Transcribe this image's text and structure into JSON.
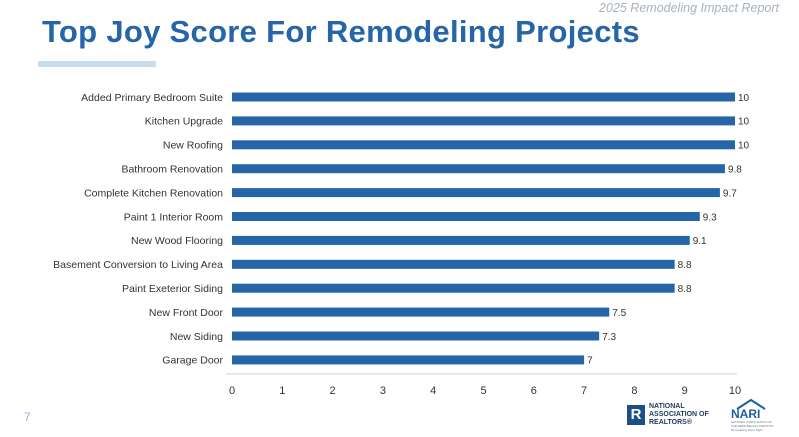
{
  "header": {
    "report_tag": "2025 Remodeling Impact Report",
    "title": "Top Joy Score For Remodeling Projects"
  },
  "footer": {
    "page_number": "7",
    "nar_logo_lines": [
      "NATIONAL",
      "ASSOCIATION OF",
      "REALTORS®"
    ],
    "nari_logo_name": "NARI",
    "nari_logo_tagline": "NATIONAL ASSOCIATION OF THE REMODELING INDUSTRY",
    "nari_logo_slogan": "Remodeling Done Right",
    "icons": [
      "realtor-r-icon",
      "house-icon"
    ]
  },
  "colors": {
    "bar": "#2565a8",
    "title": "#2565a8",
    "accent": "#c5dbee",
    "axis": "#d0d0d0"
  },
  "chart_data": {
    "type": "bar",
    "orientation": "horizontal",
    "categories": [
      "Added Primary Bedroom Suite",
      "Kitchen Upgrade",
      "New Roofing",
      "Bathroom Renovation",
      "Complete Kitchen Renovation",
      "Paint 1 Interior Room",
      "New Wood Flooring",
      "Basement Conversion to Living Area",
      "Paint Exeterior Siding",
      "New Front Door",
      "New Siding",
      "Garage Door"
    ],
    "values": [
      10,
      10,
      10,
      9.8,
      9.7,
      9.3,
      9.1,
      8.8,
      8.8,
      7.5,
      7.3,
      7
    ],
    "value_labels": [
      "10",
      "10",
      "10",
      "9.8",
      "9.7",
      "9.3",
      "9.1",
      "8.8",
      "8.8",
      "7.5",
      "7.3",
      "7"
    ],
    "xlim": [
      0,
      10
    ],
    "x_ticks": [
      "0",
      "1",
      "2",
      "3",
      "4",
      "5",
      "6",
      "7",
      "8",
      "9",
      "10"
    ],
    "grid": false,
    "legend": "none"
  }
}
